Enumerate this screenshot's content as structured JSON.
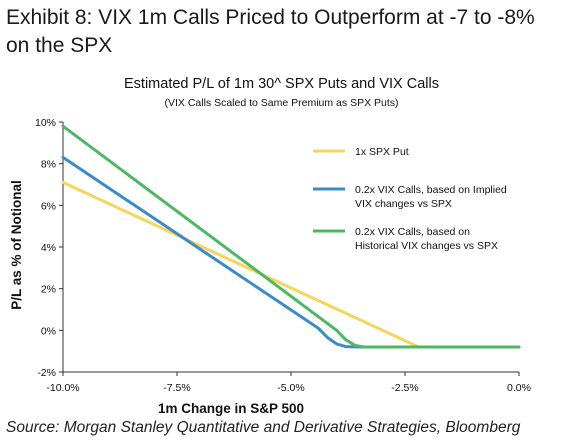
{
  "exhibit": {
    "title": "Exhibit 8:  VIX 1m Calls Priced to Outperform at -7 to -8% on the SPX"
  },
  "source": "Source: Morgan Stanley Quantitative and Derivative Strategies, Bloomberg",
  "chart_data": {
    "type": "line",
    "title": "Estimated P/L of 1m 30^ SPX Puts and VIX Calls",
    "subtitle": "(VIX Calls Scaled to Same Premium as SPX Puts)",
    "xlabel": "1m Change in S&P 500",
    "ylabel": "P/L as % of Notional",
    "xlim": [
      -10,
      0
    ],
    "ylim": [
      -2,
      10
    ],
    "x_ticks": [
      -10,
      -7.5,
      -5,
      -2.5,
      0
    ],
    "x_tick_labels": [
      "-10.0%",
      "-7.5%",
      "-5.0%",
      "-2.5%",
      "0.0%"
    ],
    "y_ticks": [
      -2,
      0,
      2,
      4,
      6,
      8,
      10
    ],
    "y_tick_labels": [
      "-2%",
      "0%",
      "2%",
      "4%",
      "6%",
      "8%",
      "10%"
    ],
    "grid": false,
    "legend_position": "right",
    "series": [
      {
        "name": "1x SPX Put",
        "color": "#F5D55A",
        "x": [
          -10,
          -2.2,
          0
        ],
        "y": [
          7.1,
          -0.8,
          -0.8
        ]
      },
      {
        "name": "0.2x VIX Calls, based on Implied VIX changes vs SPX",
        "color": "#3C8BC6",
        "x": [
          -10,
          -4.4,
          -4.2,
          -4.0,
          -3.8,
          -3.5,
          0
        ],
        "y": [
          8.3,
          0.1,
          -0.35,
          -0.65,
          -0.78,
          -0.8,
          -0.8
        ]
      },
      {
        "name": "0.2x VIX Calls, based on Historical VIX changes vs SPX",
        "color": "#4DB862",
        "x": [
          -10,
          -4.0,
          -3.8,
          -3.6,
          -3.4,
          0
        ],
        "y": [
          9.8,
          0.0,
          -0.45,
          -0.72,
          -0.8,
          -0.8
        ]
      }
    ],
    "legend_labels": [
      [
        "1x SPX Put"
      ],
      [
        "0.2x VIX Calls, based on Implied",
        "VIX changes vs SPX"
      ],
      [
        "0.2x VIX Calls, based on",
        "Historical VIX changes vs SPX"
      ]
    ]
  }
}
